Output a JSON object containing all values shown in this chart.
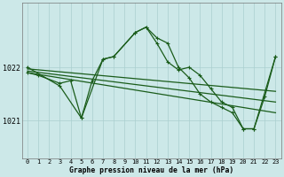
{
  "title": "Graphe pression niveau de la mer (hPa)",
  "bg_color": "#cce8e8",
  "grid_color": "#aacfcf",
  "line_color": "#1a5c1a",
  "xlim": [
    -0.5,
    23.5
  ],
  "ylim": [
    1020.3,
    1023.2
  ],
  "yticks": [
    1021,
    1022
  ],
  "xtick_labels": [
    "0",
    "1",
    "2",
    "3",
    "4",
    "5",
    "6",
    "7",
    "8",
    "9",
    "10",
    "11",
    "12",
    "13",
    "14",
    "15",
    "16",
    "17",
    "18",
    "19",
    "20",
    "21",
    "22",
    "23"
  ],
  "series_main_x": [
    0,
    1,
    3,
    4,
    5,
    6,
    7,
    8,
    10,
    11,
    12,
    13,
    14,
    15,
    16,
    17,
    18,
    19,
    20,
    21,
    22,
    23
  ],
  "series_main_y": [
    1021.9,
    1021.85,
    1021.7,
    1021.75,
    1021.05,
    1021.75,
    1022.15,
    1022.2,
    1022.65,
    1022.75,
    1022.55,
    1022.45,
    1022.0,
    1021.8,
    1021.5,
    1021.35,
    1021.25,
    1021.15,
    1020.85,
    1020.85,
    1021.45,
    1022.2
  ],
  "series_spike_x": [
    0,
    3,
    5,
    7,
    8,
    10,
    11,
    12,
    13,
    14,
    15,
    16,
    17,
    18,
    19,
    20,
    21,
    23
  ],
  "series_spike_y": [
    1022.0,
    1021.65,
    1021.05,
    1022.15,
    1022.2,
    1022.65,
    1022.75,
    1022.45,
    1022.1,
    1021.95,
    1022.0,
    1021.85,
    1021.6,
    1021.35,
    1021.25,
    1020.85,
    1020.85,
    1022.2
  ],
  "line1_x": [
    0,
    23
  ],
  "line1_y": [
    1021.97,
    1021.55
  ],
  "line2_x": [
    0,
    23
  ],
  "line2_y": [
    1021.93,
    1021.35
  ],
  "line3_x": [
    0,
    23
  ],
  "line3_y": [
    1021.9,
    1021.15
  ]
}
